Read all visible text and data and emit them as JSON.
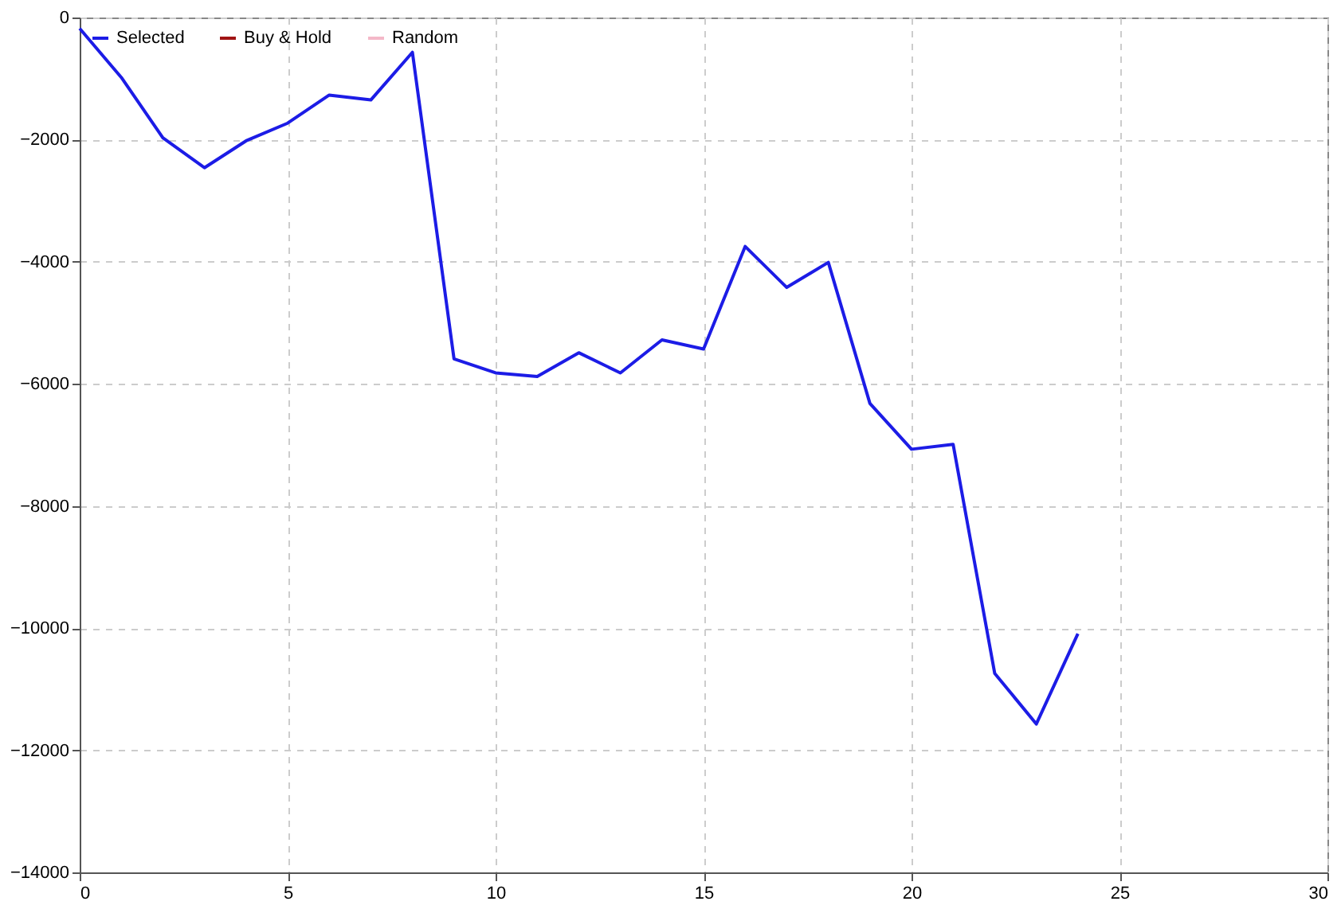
{
  "chart_data": {
    "type": "line",
    "x": [
      0,
      1,
      2,
      3,
      4,
      5,
      6,
      7,
      8,
      9,
      10,
      11,
      12,
      13,
      14,
      15,
      16,
      17,
      18,
      19,
      20,
      21,
      22,
      23,
      24
    ],
    "series": [
      {
        "name": "Selected",
        "color": "#1c1ce6",
        "values": [
          -180,
          -980,
          -1970,
          -2460,
          -2020,
          -1730,
          -1270,
          -1350,
          -570,
          -5590,
          -5820,
          -5880,
          -5490,
          -5820,
          -5280,
          -5430,
          -3750,
          -4420,
          -4010,
          -6320,
          -7070,
          -6990,
          -10740,
          -11570,
          -10090
        ]
      },
      {
        "name": "Buy & Hold",
        "color": "#a01414",
        "values": [
          null,
          null,
          null,
          null,
          null,
          null,
          null,
          null,
          null,
          null,
          null,
          null,
          null,
          null,
          null,
          null,
          null,
          null,
          null,
          null,
          null,
          null,
          null,
          null,
          null
        ]
      },
      {
        "name": "Random",
        "color": "#f4b8c8",
        "values": [
          null,
          null,
          null,
          null,
          null,
          null,
          null,
          null,
          null,
          null,
          null,
          null,
          null,
          null,
          null,
          null,
          null,
          null,
          null,
          null,
          null,
          null,
          null,
          null,
          null
        ]
      }
    ],
    "xlim": [
      0,
      30
    ],
    "xticks": [
      0,
      5,
      10,
      15,
      20,
      25,
      30
    ],
    "ylim": [
      -14000,
      0
    ],
    "yticks": [
      -14000,
      -12000,
      -10000,
      -8000,
      -6000,
      -4000,
      -2000,
      0
    ],
    "grid": true,
    "legend": "top left",
    "marker": "none",
    "line_style": "solid"
  }
}
